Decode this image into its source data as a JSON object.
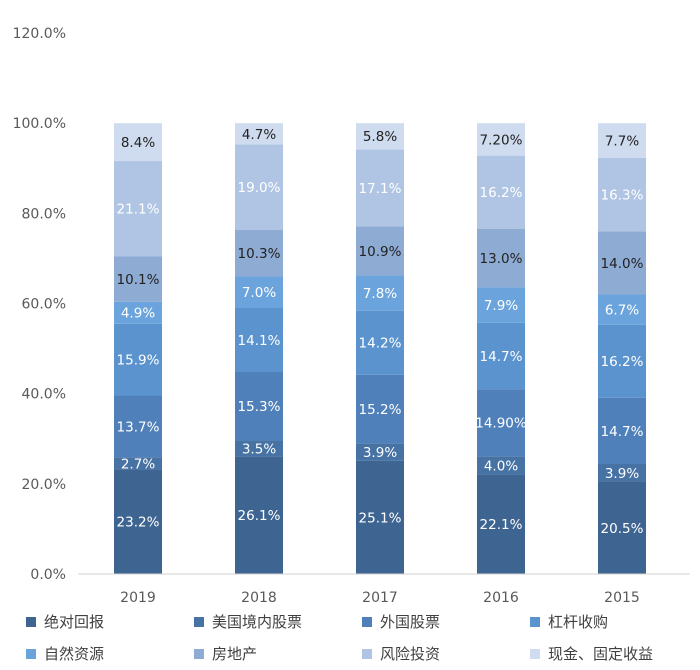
{
  "chart_data": {
    "type": "bar",
    "stacked": true,
    "title": "",
    "xlabel": "",
    "ylabel": "",
    "ylim": [
      0,
      120
    ],
    "y_ticks": [
      "0.0%",
      "20.0%",
      "40.0%",
      "60.0%",
      "80.0%",
      "100.0%",
      "120.0%"
    ],
    "y_tick_values": [
      0,
      20,
      40,
      60,
      80,
      100,
      120
    ],
    "grid": false,
    "legend_position": "bottom",
    "categories": [
      "2019",
      "2018",
      "2017",
      "2016",
      "2015"
    ],
    "series": [
      {
        "name": "绝对回报",
        "color": "#3e6591",
        "label_color": "#ffffff",
        "values": [
          23.2,
          26.1,
          25.1,
          22.1,
          20.5
        ],
        "labels": [
          "23.2%",
          "26.1%",
          "25.1%",
          "22.1%",
          "20.5%"
        ]
      },
      {
        "name": "美国境内股票",
        "color": "#4672a4",
        "label_color": "#ffffff",
        "values": [
          2.7,
          3.5,
          3.9,
          4.0,
          3.9
        ],
        "labels": [
          "2.7%",
          "3.5%",
          "3.9%",
          "4.0%",
          "3.9%"
        ]
      },
      {
        "name": "外国股票",
        "color": "#4f80b9",
        "label_color": "#ffffff",
        "values": [
          13.7,
          15.3,
          15.2,
          14.9,
          14.7
        ],
        "labels": [
          "13.7%",
          "15.3%",
          "15.2%",
          "14.90%",
          "14.7%"
        ]
      },
      {
        "name": "杠杆收购",
        "color": "#5b93cf",
        "label_color": "#ffffff",
        "values": [
          15.9,
          14.1,
          14.2,
          14.7,
          16.2
        ],
        "labels": [
          "15.9%",
          "14.1%",
          "14.2%",
          "14.7%",
          "16.2%"
        ]
      },
      {
        "name": "自然资源",
        "color": "#6ba4dc",
        "label_color": "#ffffff",
        "values": [
          4.9,
          7.0,
          7.8,
          7.9,
          6.7
        ],
        "labels": [
          "4.9%",
          "7.0%",
          "7.8%",
          "7.9%",
          "6.7%"
        ]
      },
      {
        "name": "房地产",
        "color": "#8eabd4",
        "label_color": "#222222",
        "values": [
          10.1,
          10.3,
          10.9,
          13.0,
          14.0
        ],
        "labels": [
          "10.1%",
          "10.3%",
          "10.9%",
          "13.0%",
          "14.0%"
        ]
      },
      {
        "name": "风险投资",
        "color": "#b0c5e3",
        "label_color": "#ffffff",
        "values": [
          21.1,
          19.0,
          17.1,
          16.2,
          16.3
        ],
        "labels": [
          "21.1%",
          "19.0%",
          "17.1%",
          "16.2%",
          "16.3%"
        ]
      },
      {
        "name": "现金、固定收益",
        "color": "#cfdcef",
        "label_color": "#222222",
        "values": [
          8.4,
          4.7,
          5.8,
          7.2,
          7.7
        ],
        "labels": [
          "8.4%",
          "4.7%",
          "5.8%",
          "7.20%",
          "7.7%"
        ]
      }
    ]
  }
}
